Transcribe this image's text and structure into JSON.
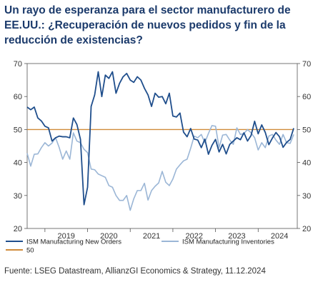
{
  "title": "Un rayo de esperanza para el sector manufacturero de EE.UU.: ¿Recuperación de nuevos pedidos y fin de la reducción de existencias?",
  "source": "Fuente: LSEG Datastream, AllianzGI Economics & Strategy, 11.12.2024",
  "chart_data": {
    "type": "line",
    "title": "Un rayo de esperanza para el sector manufacturero de EE.UU.: ¿Recuperación de nuevos pedidos y fin de la reducción de existencias?",
    "xlabel": "",
    "ylabel": "",
    "x_range": [
      "2018-08",
      "2024-12"
    ],
    "ylim": [
      20,
      70
    ],
    "yticks": [
      20,
      30,
      40,
      50,
      60,
      70
    ],
    "xticks": [
      "2019",
      "2020",
      "2021",
      "2022",
      "2023",
      "2024"
    ],
    "grid": false,
    "legend_position": "bottom",
    "x": [
      "2018-08",
      "2018-09",
      "2018-10",
      "2018-11",
      "2018-12",
      "2019-01",
      "2019-02",
      "2019-03",
      "2019-04",
      "2019-05",
      "2019-06",
      "2019-07",
      "2019-08",
      "2019-09",
      "2019-10",
      "2019-11",
      "2019-12",
      "2020-01",
      "2020-02",
      "2020-03",
      "2020-04",
      "2020-05",
      "2020-06",
      "2020-07",
      "2020-08",
      "2020-09",
      "2020-10",
      "2020-11",
      "2020-12",
      "2021-01",
      "2021-02",
      "2021-03",
      "2021-04",
      "2021-05",
      "2021-06",
      "2021-07",
      "2021-08",
      "2021-09",
      "2021-10",
      "2021-11",
      "2021-12",
      "2022-01",
      "2022-02",
      "2022-03",
      "2022-04",
      "2022-05",
      "2022-06",
      "2022-07",
      "2022-08",
      "2022-09",
      "2022-10",
      "2022-11",
      "2022-12",
      "2023-01",
      "2023-02",
      "2023-03",
      "2023-04",
      "2023-05",
      "2023-06",
      "2023-07",
      "2023-08",
      "2023-09",
      "2023-10",
      "2023-11",
      "2023-12",
      "2024-01",
      "2024-02",
      "2024-03",
      "2024-04",
      "2024-05",
      "2024-06",
      "2024-07",
      "2024-08",
      "2024-09",
      "2024-10",
      "2024-11"
    ],
    "series": [
      {
        "name": "ISM Manufacturing New Orders",
        "color": "#1f4e8c",
        "values": [
          56.8,
          56.0,
          56.8,
          53.5,
          52.6,
          51.0,
          50.5,
          46.5,
          47.5,
          48.0,
          47.8,
          47.8,
          47.5,
          53.5,
          51.5,
          47.0,
          27.2,
          32.5,
          57.0,
          60.5,
          67.5,
          60.0,
          66.5,
          65.5,
          67.5,
          61.0,
          64.0,
          66.0,
          67.0,
          65.0,
          64.3,
          66.0,
          65.0,
          62.5,
          60.5,
          57.0,
          61.0,
          59.8,
          60.0,
          57.8,
          61.0,
          54.1,
          53.8,
          55.0,
          49.2,
          47.8,
          50.3,
          47.1,
          46.8,
          44.5,
          47.1,
          42.5,
          45.2,
          47.0,
          43.2,
          45.5,
          42.6,
          45.5,
          46.5,
          47.5,
          46.9,
          49.0,
          46.5,
          48.2,
          52.5,
          48.7,
          51.4,
          49.1,
          45.4,
          47.4,
          49.1,
          47.8,
          44.6,
          46.1,
          47.0,
          50.4
        ],
        "line_width": 1.8
      },
      {
        "name": "ISM Manufacturing Inventories",
        "color": "#9bb6d6",
        "values": [
          42.8,
          38.9,
          42.5,
          42.6,
          44.5,
          46.0,
          45.0,
          45.9,
          47.5,
          44.6,
          41.0,
          43.5,
          41.0,
          49.0,
          46.5,
          46.0,
          44.0,
          43.0,
          38.0,
          37.8,
          36.5,
          36.0,
          35.5,
          33.0,
          32.5,
          30.0,
          28.5,
          28.5,
          30.0,
          25.5,
          29.0,
          31.5,
          31.5,
          33.7,
          28.6,
          31.5,
          32.8,
          33.8,
          37.3,
          34.0,
          33.0,
          35.0,
          38.0,
          39.3,
          40.5,
          41.0,
          44.3,
          48.0,
          47.5,
          48.5,
          46.0,
          48.8,
          51.2,
          51.0,
          44.5,
          48.3,
          48.5,
          46.8,
          45.5,
          50.5,
          48.5,
          48.8,
          50.0,
          49.0,
          47.5,
          43.8,
          46.0,
          44.5,
          48.0,
          48.5,
          46.8,
          45.5,
          48.5,
          46.0,
          45.8,
          48.5
        ]
      },
      {
        "name": "50",
        "color": "#d08b3a",
        "values": [
          50,
          50,
          50,
          50,
          50,
          50,
          50,
          50,
          50,
          50,
          50,
          50,
          50,
          50,
          50,
          50,
          50,
          50,
          50,
          50,
          50,
          50,
          50,
          50,
          50,
          50,
          50,
          50,
          50,
          50,
          50,
          50,
          50,
          50,
          50,
          50,
          50,
          50,
          50,
          50,
          50,
          50,
          50,
          50,
          50,
          50,
          50,
          50,
          50,
          50,
          50,
          50,
          50,
          50,
          50,
          50,
          50,
          50,
          50,
          50,
          50,
          50,
          50,
          50,
          50,
          50,
          50,
          50,
          50,
          50,
          50,
          50,
          50,
          50,
          50,
          50
        ]
      }
    ]
  }
}
